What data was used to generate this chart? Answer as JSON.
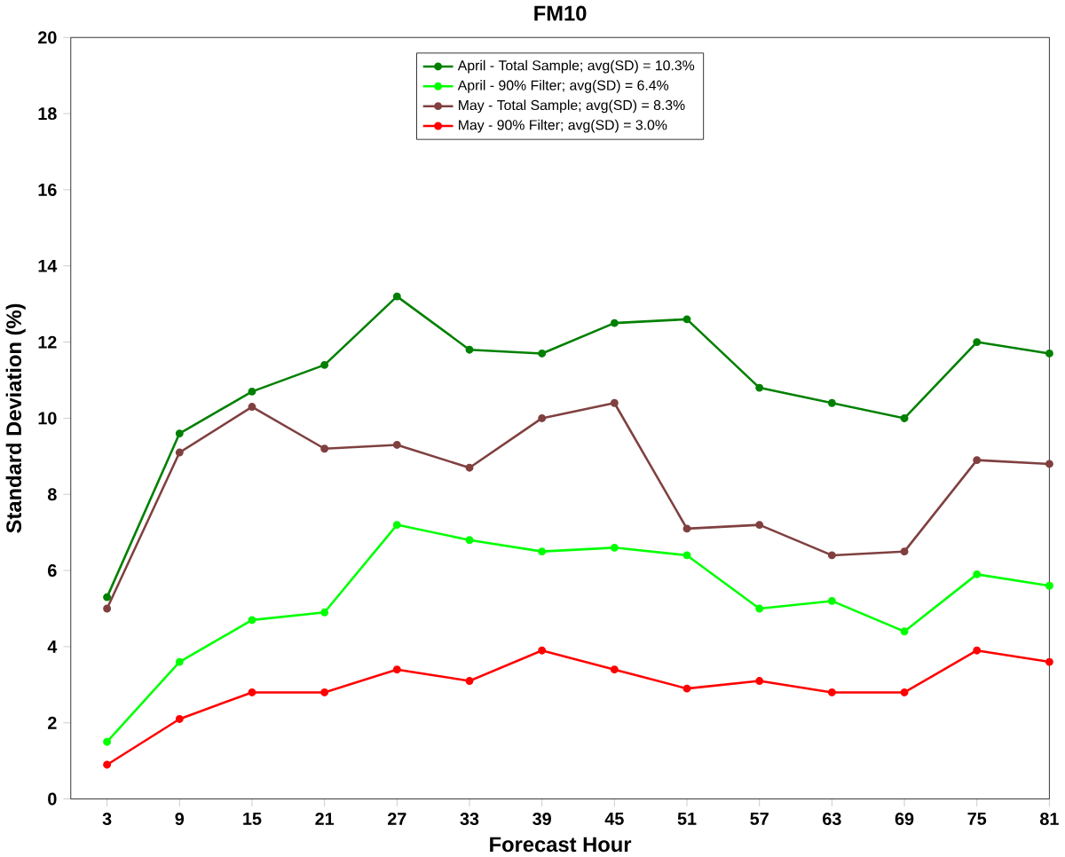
{
  "chart_data": {
    "type": "line",
    "title": "FM10",
    "xlabel": "Forecast Hour",
    "ylabel": "Standard Deviation (%)",
    "categories": [
      "3",
      "9",
      "15",
      "21",
      "27",
      "33",
      "39",
      "45",
      "51",
      "57",
      "63",
      "69",
      "75",
      "81"
    ],
    "series": [
      {
        "name": "April - Total Sample;  avg(SD) = 10.3%",
        "color": "#008000",
        "values": [
          5.3,
          9.6,
          10.7,
          11.4,
          13.2,
          11.8,
          11.7,
          12.5,
          12.6,
          10.8,
          10.4,
          10.0,
          12.0,
          11.7
        ]
      },
      {
        "name": "April - 90% Filter;  avg(SD) = 6.4%",
        "color": "#00ff00",
        "values": [
          1.5,
          3.6,
          4.7,
          4.9,
          7.2,
          6.8,
          6.5,
          6.6,
          6.4,
          5.0,
          5.2,
          4.4,
          5.9,
          5.6
        ]
      },
      {
        "name": "May - Total Sample;  avg(SD) = 8.3%",
        "color": "#804040",
        "values": [
          5.0,
          9.1,
          10.3,
          9.2,
          9.3,
          8.7,
          10.0,
          10.4,
          7.1,
          7.2,
          6.4,
          6.5,
          8.9,
          8.8
        ]
      },
      {
        "name": "May - 90% Filter;  avg(SD) = 3.0%",
        "color": "#ff0000",
        "values": [
          0.9,
          2.1,
          2.8,
          2.8,
          3.4,
          3.1,
          3.9,
          3.4,
          2.9,
          3.1,
          2.8,
          2.8,
          3.9,
          3.6
        ]
      }
    ],
    "ylim": [
      0,
      20
    ],
    "yticks": [
      0,
      2,
      4,
      6,
      8,
      10,
      12,
      14,
      16,
      18,
      20
    ],
    "grid": false,
    "legend": "top",
    "marker": "circle",
    "line_style": "solid"
  }
}
